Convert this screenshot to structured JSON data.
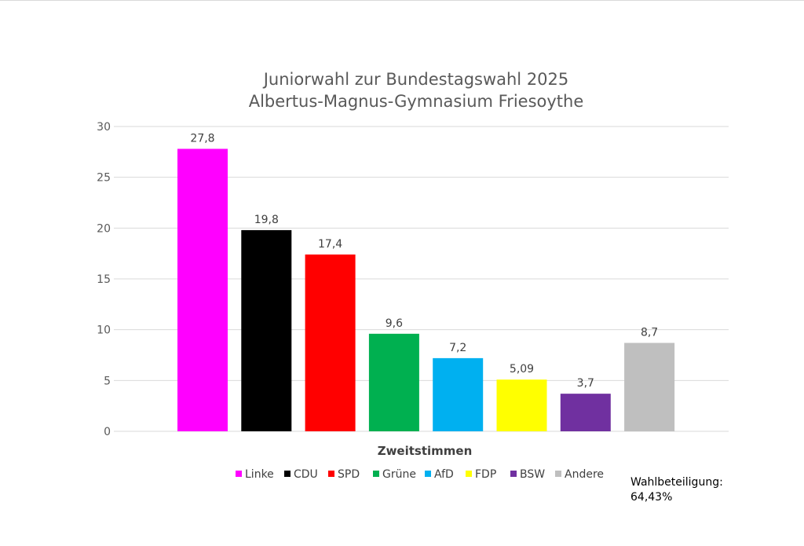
{
  "chart_data": {
    "type": "bar",
    "title": "Juniorwahl zur Bundestagswahl 2025",
    "subtitle": "Albertus-Magnus-Gymnasium Friesoythe",
    "xlabel": "Zweitstimmen",
    "ylabel": "",
    "ylim": [
      0,
      30
    ],
    "yticks": [
      "0",
      "5",
      "10",
      "15",
      "20",
      "25",
      "30"
    ],
    "grid": true,
    "legend_position": "bottom",
    "series": [
      {
        "name": "Linke",
        "value": 27.8,
        "label": "27,8",
        "color": "#FF00FF"
      },
      {
        "name": "CDU",
        "value": 19.8,
        "label": "19,8",
        "color": "#000000"
      },
      {
        "name": "SPD",
        "value": 17.4,
        "label": "17,4",
        "color": "#FF0000"
      },
      {
        "name": "Grüne",
        "value": 9.6,
        "label": "9,6",
        "color": "#00B050"
      },
      {
        "name": "AfD",
        "value": 7.2,
        "label": "7,2",
        "color": "#00B0F0"
      },
      {
        "name": "FDP",
        "value": 5.09,
        "label": "5,09",
        "color": "#FFFF00"
      },
      {
        "name": "BSW",
        "value": 3.7,
        "label": "3,7",
        "color": "#7030A0"
      },
      {
        "name": "Andere",
        "value": 8.7,
        "label": "8,7",
        "color": "#BFBFBF"
      }
    ]
  },
  "note": {
    "line1": "Wahlbeteiligung:",
    "line2": "64,43%"
  }
}
